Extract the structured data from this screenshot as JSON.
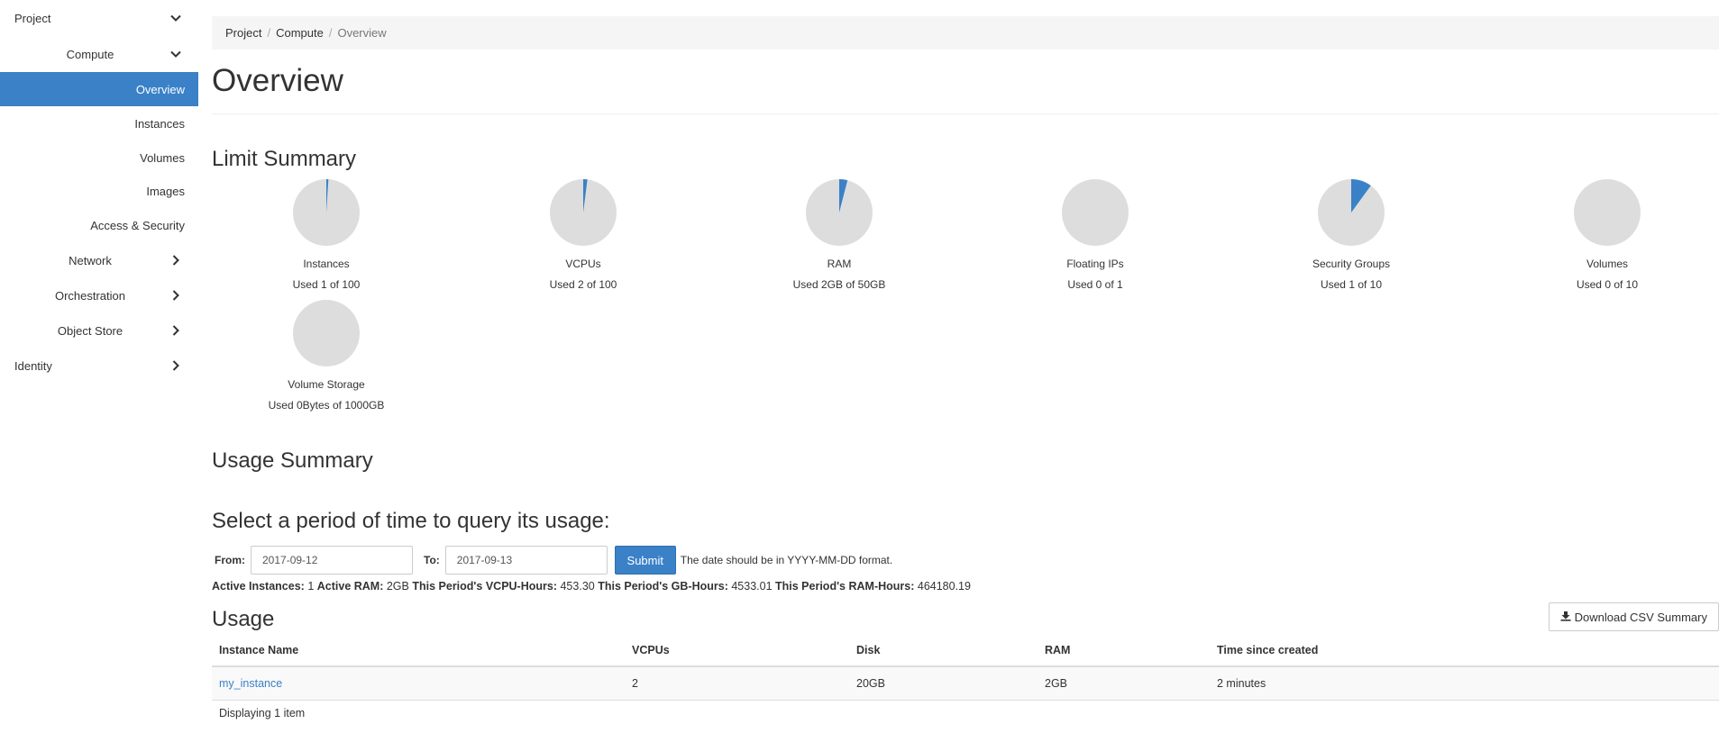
{
  "sidebar": {
    "project": "Project",
    "compute": "Compute",
    "items": [
      "Overview",
      "Instances",
      "Volumes",
      "Images",
      "Access & Security"
    ],
    "network": "Network",
    "orchestration": "Orchestration",
    "object_store": "Object Store",
    "identity": "Identity"
  },
  "breadcrumb": {
    "project": "Project",
    "compute": "Compute",
    "current": "Overview",
    "sep": "/"
  },
  "page_title": "Overview",
  "limit_summary": {
    "heading": "Limit Summary",
    "items": [
      {
        "label": "Instances",
        "used": "Used 1 of 100",
        "fraction": 0.01
      },
      {
        "label": "VCPUs",
        "used": "Used 2 of 100",
        "fraction": 0.02
      },
      {
        "label": "RAM",
        "used": "Used 2GB of 50GB",
        "fraction": 0.04
      },
      {
        "label": "Floating IPs",
        "used": "Used 0 of 1",
        "fraction": 0
      },
      {
        "label": "Security Groups",
        "used": "Used 1 of 10",
        "fraction": 0.1
      },
      {
        "label": "Volumes",
        "used": "Used 0 of 10",
        "fraction": 0
      },
      {
        "label": "Volume Storage",
        "used": "Used 0Bytes of 1000GB",
        "fraction": 0
      }
    ]
  },
  "usage_summary": {
    "heading": "Usage Summary",
    "period_heading": "Select a period of time to query its usage:",
    "from_label": "From:",
    "from_value": "2017-09-12",
    "to_label": "To:",
    "to_value": "2017-09-13",
    "submit": "Submit",
    "hint": "The date should be in YYYY-MM-DD format.",
    "stats": {
      "active_instances_label": "Active Instances:",
      "active_instances": "1",
      "active_ram_label": "Active RAM:",
      "active_ram": "2GB",
      "vcpu_hours_label": "This Period's VCPU-Hours:",
      "vcpu_hours": "453.30",
      "gb_hours_label": "This Period's GB-Hours:",
      "gb_hours": "4533.01",
      "ram_hours_label": "This Period's RAM-Hours:",
      "ram_hours": "464180.19"
    }
  },
  "usage": {
    "heading": "Usage",
    "download": "Download CSV Summary",
    "columns": [
      "Instance Name",
      "VCPUs",
      "Disk",
      "RAM",
      "Time since created"
    ],
    "rows": [
      [
        "my_instance",
        "2",
        "20GB",
        "2GB",
        "2 minutes"
      ]
    ],
    "footer": "Displaying 1 item"
  },
  "colors": {
    "accent": "#3a81c8",
    "pie_bg": "#dddddd"
  }
}
